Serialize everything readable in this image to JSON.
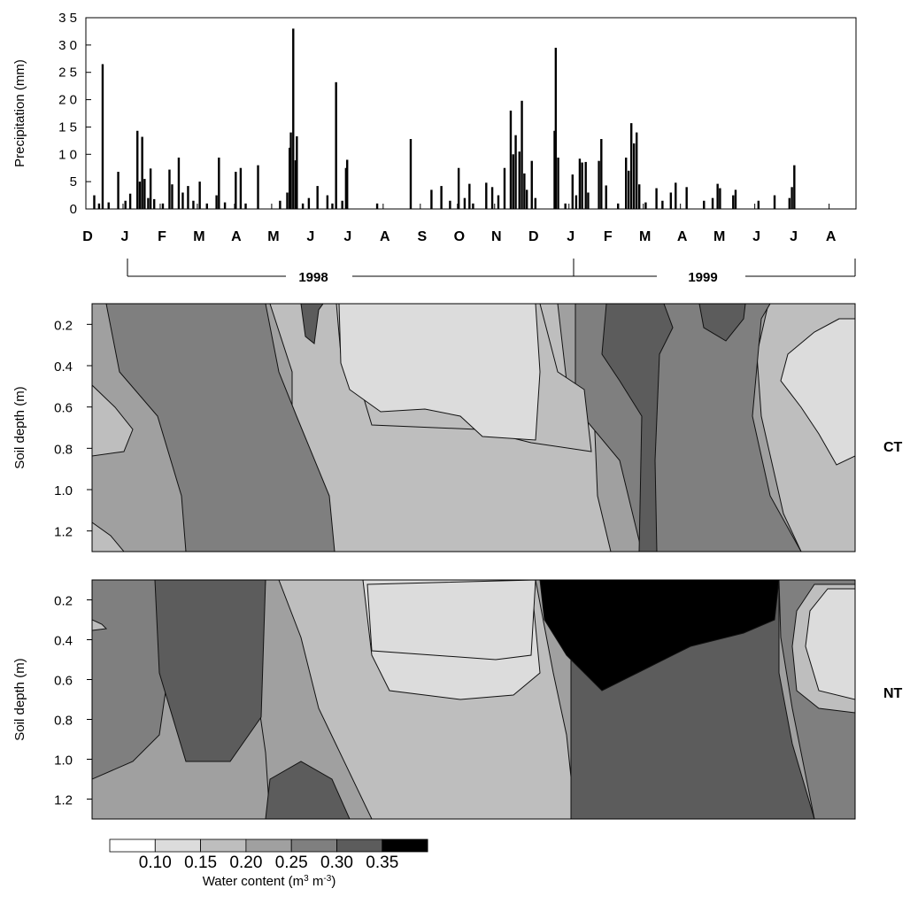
{
  "chart_data": [
    {
      "type": "bar",
      "title": "",
      "xlabel": "",
      "ylabel": "Precipitation (mm)",
      "ylim": [
        0,
        35
      ],
      "yticks": [
        "0",
        "5",
        "1 0",
        "1 5",
        "2 0",
        "2 5",
        "3 0",
        "3 5"
      ],
      "month_labels": [
        "D",
        "J",
        "F",
        "M",
        "A",
        "M",
        "J",
        "J",
        "A",
        "S",
        "O",
        "N",
        "D",
        "J",
        "F",
        "M",
        "A",
        "M",
        "J",
        "J",
        "A"
      ],
      "years": [
        "1998",
        "1999"
      ],
      "series": [
        {
          "values": [
            {
              "date": "1997-12-08",
              "mm": 2.5
            },
            {
              "date": "1997-12-12",
              "mm": 1.0
            },
            {
              "date": "1997-12-15",
              "mm": 26.5
            },
            {
              "date": "1997-12-20",
              "mm": 1.2
            },
            {
              "date": "1997-12-28",
              "mm": 6.8
            },
            {
              "date": "1998-01-03",
              "mm": 1.5
            },
            {
              "date": "1998-01-07",
              "mm": 2.8
            },
            {
              "date": "1998-01-13",
              "mm": 14.3
            },
            {
              "date": "1998-01-15",
              "mm": 5.0
            },
            {
              "date": "1998-01-17",
              "mm": 13.2
            },
            {
              "date": "1998-01-19",
              "mm": 5.5
            },
            {
              "date": "1998-01-22",
              "mm": 2.0
            },
            {
              "date": "1998-01-24",
              "mm": 7.4
            },
            {
              "date": "1998-01-27",
              "mm": 1.8
            },
            {
              "date": "1998-02-03",
              "mm": 1.0
            },
            {
              "date": "1998-02-08",
              "mm": 7.2
            },
            {
              "date": "1998-02-10",
              "mm": 4.5
            },
            {
              "date": "1998-02-15",
              "mm": 9.4
            },
            {
              "date": "1998-02-18",
              "mm": 3.0
            },
            {
              "date": "1998-02-22",
              "mm": 4.2
            },
            {
              "date": "1998-02-26",
              "mm": 1.5
            },
            {
              "date": "1998-03-03",
              "mm": 5.0
            },
            {
              "date": "1998-03-09",
              "mm": 1.0
            },
            {
              "date": "1998-03-17",
              "mm": 2.5
            },
            {
              "date": "1998-03-19",
              "mm": 9.4
            },
            {
              "date": "1998-03-24",
              "mm": 1.2
            },
            {
              "date": "1998-04-02",
              "mm": 6.8
            },
            {
              "date": "1998-04-06",
              "mm": 7.5
            },
            {
              "date": "1998-04-10",
              "mm": 1.0
            },
            {
              "date": "1998-04-20",
              "mm": 8.0
            },
            {
              "date": "1998-05-08",
              "mm": 1.5
            },
            {
              "date": "1998-05-14",
              "mm": 3.0
            },
            {
              "date": "1998-05-16",
              "mm": 11.2
            },
            {
              "date": "1998-05-17",
              "mm": 14.0
            },
            {
              "date": "1998-05-19",
              "mm": 33.0
            },
            {
              "date": "1998-05-21",
              "mm": 8.9
            },
            {
              "date": "1998-05-22",
              "mm": 13.3
            },
            {
              "date": "1998-05-27",
              "mm": 1.0
            },
            {
              "date": "1998-06-01",
              "mm": 2.0
            },
            {
              "date": "1998-06-08",
              "mm": 4.2
            },
            {
              "date": "1998-06-16",
              "mm": 2.5
            },
            {
              "date": "1998-06-20",
              "mm": 1.0
            },
            {
              "date": "1998-06-23",
              "mm": 23.2
            },
            {
              "date": "1998-06-28",
              "mm": 1.5
            },
            {
              "date": "1998-07-01",
              "mm": 7.5
            },
            {
              "date": "1998-07-02",
              "mm": 9.0
            },
            {
              "date": "1998-07-27",
              "mm": 1.0
            },
            {
              "date": "1998-08-24",
              "mm": 12.8
            },
            {
              "date": "1998-09-10",
              "mm": 3.5
            },
            {
              "date": "1998-09-18",
              "mm": 4.2
            },
            {
              "date": "1998-09-25",
              "mm": 1.5
            },
            {
              "date": "1998-10-02",
              "mm": 7.5
            },
            {
              "date": "1998-10-07",
              "mm": 2.0
            },
            {
              "date": "1998-10-11",
              "mm": 4.6
            },
            {
              "date": "1998-10-14",
              "mm": 1.0
            },
            {
              "date": "1998-10-25",
              "mm": 4.8
            },
            {
              "date": "1998-10-30",
              "mm": 4.0
            },
            {
              "date": "1998-11-04",
              "mm": 2.5
            },
            {
              "date": "1998-11-09",
              "mm": 7.5
            },
            {
              "date": "1998-11-14",
              "mm": 18.0
            },
            {
              "date": "1998-11-16",
              "mm": 10.0
            },
            {
              "date": "1998-11-18",
              "mm": 13.5
            },
            {
              "date": "1998-11-21",
              "mm": 10.5
            },
            {
              "date": "1998-11-23",
              "mm": 19.8
            },
            {
              "date": "1998-11-25",
              "mm": 6.5
            },
            {
              "date": "1998-11-27",
              "mm": 3.5
            },
            {
              "date": "1998-12-01",
              "mm": 8.8
            },
            {
              "date": "1998-12-04",
              "mm": 2.0
            },
            {
              "date": "1998-12-20",
              "mm": 14.3
            },
            {
              "date": "1998-12-21",
              "mm": 29.5
            },
            {
              "date": "1998-12-23",
              "mm": 9.4
            },
            {
              "date": "1998-12-29",
              "mm": 1.0
            },
            {
              "date": "1999-01-04",
              "mm": 6.3
            },
            {
              "date": "1999-01-07",
              "mm": 2.5
            },
            {
              "date": "1999-01-10",
              "mm": 9.2
            },
            {
              "date": "1999-01-12",
              "mm": 8.5
            },
            {
              "date": "1999-01-15",
              "mm": 8.6
            },
            {
              "date": "1999-01-17",
              "mm": 3.0
            },
            {
              "date": "1999-01-26",
              "mm": 8.8
            },
            {
              "date": "1999-01-28",
              "mm": 12.8
            },
            {
              "date": "1999-02-01",
              "mm": 4.3
            },
            {
              "date": "1999-02-10",
              "mm": 1.0
            },
            {
              "date": "1999-02-16",
              "mm": 9.4
            },
            {
              "date": "1999-02-18",
              "mm": 7.0
            },
            {
              "date": "1999-02-20",
              "mm": 15.7
            },
            {
              "date": "1999-02-22",
              "mm": 12.0
            },
            {
              "date": "1999-02-24",
              "mm": 14.0
            },
            {
              "date": "1999-02-26",
              "mm": 4.5
            },
            {
              "date": "1999-03-03",
              "mm": 1.2
            },
            {
              "date": "1999-03-12",
              "mm": 3.8
            },
            {
              "date": "1999-03-17",
              "mm": 1.5
            },
            {
              "date": "1999-03-24",
              "mm": 3.0
            },
            {
              "date": "1999-03-28",
              "mm": 4.8
            },
            {
              "date": "1999-04-06",
              "mm": 4.0
            },
            {
              "date": "1999-04-20",
              "mm": 1.5
            },
            {
              "date": "1999-04-27",
              "mm": 2.0
            },
            {
              "date": "1999-05-01",
              "mm": 4.6
            },
            {
              "date": "1999-05-03",
              "mm": 3.8
            },
            {
              "date": "1999-05-14",
              "mm": 2.5
            },
            {
              "date": "1999-05-16",
              "mm": 3.5
            },
            {
              "date": "1999-06-04",
              "mm": 1.5
            },
            {
              "date": "1999-06-17",
              "mm": 2.5
            },
            {
              "date": "1999-06-29",
              "mm": 2.0
            },
            {
              "date": "1999-07-01",
              "mm": 4.0
            },
            {
              "date": "1999-07-03",
              "mm": 8.0
            }
          ]
        }
      ]
    },
    {
      "type": "heatmap",
      "panel": "CT",
      "ylabel": "Soil depth (m)",
      "yticks": [
        "0.2",
        "0.4",
        "0.6",
        "0.8",
        "1.0",
        "1.2"
      ],
      "ylim": [
        1.3,
        0.1
      ]
    },
    {
      "type": "heatmap",
      "panel": "NT",
      "ylabel": "Soil depth (m)",
      "yticks": [
        "0.2",
        "0.4",
        "0.6",
        "0.8",
        "1.0",
        "1.2"
      ],
      "ylim": [
        1.3,
        0.1
      ]
    },
    {
      "type": "colorbar",
      "title_main": "Water content (m",
      "title_sup1": "3",
      "title_mid": " m",
      "title_sup2": "-3",
      "title_end": ")",
      "labels": [
        "0.10",
        "0.15",
        "0.20",
        "0.25",
        "0.30",
        "0.35"
      ],
      "colors": [
        "#ffffff",
        "#dcdcdc",
        "#bebebe",
        "#a0a0a0",
        "#7f7f7f",
        "#5c5c5c",
        "#000000"
      ]
    }
  ]
}
